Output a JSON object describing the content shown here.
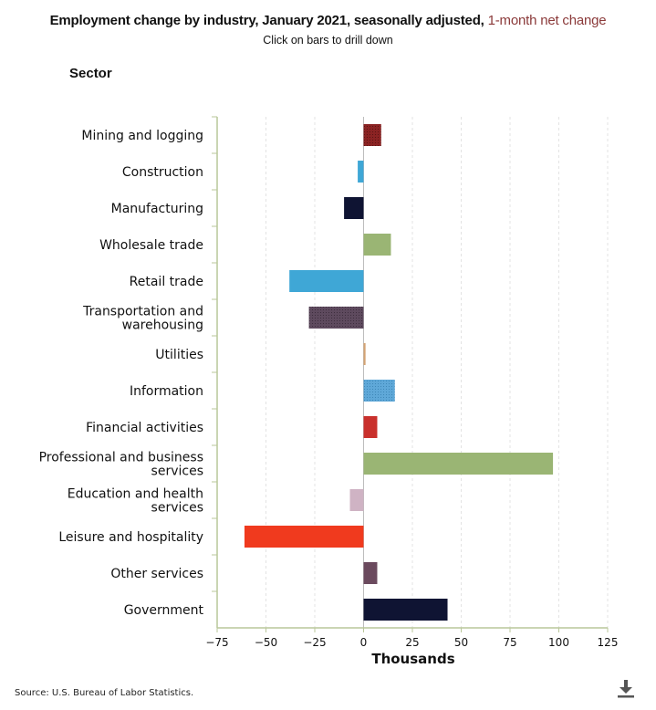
{
  "header": {
    "title": "Employment change by industry, January 2021, seasonally adjusted,",
    "title_highlight": "1-month net change",
    "subtitle": "Click on bars to drill down",
    "sector_label": "Sector"
  },
  "footer": {
    "source": "Source: U.S. Bureau of Labor Statistics."
  },
  "icons": {
    "download": "download-icon"
  },
  "chart_data": {
    "type": "bar",
    "orientation": "horizontal",
    "title": "Employment change by industry, January 2021, seasonally adjusted, 1-month net change",
    "xlabel": "Thousands",
    "ylabel": "Sector",
    "xlim": [
      -75,
      125
    ],
    "xticks": [
      -75,
      -50,
      -25,
      0,
      25,
      50,
      75,
      100,
      125
    ],
    "xtick_labels": [
      "−75",
      "−50",
      "−25",
      "0",
      "25",
      "50",
      "75",
      "100",
      "125"
    ],
    "grid": "vertical dashed",
    "categories": [
      {
        "label": "Mining and logging",
        "lines": [
          "Mining and logging"
        ],
        "value": 9,
        "color": "#8b2323"
      },
      {
        "label": "Construction",
        "lines": [
          "Construction"
        ],
        "value": -3,
        "color": "#3fa7d6"
      },
      {
        "label": "Manufacturing",
        "lines": [
          "Manufacturing"
        ],
        "value": -10,
        "color": "#0f1433"
      },
      {
        "label": "Wholesale trade",
        "lines": [
          "Wholesale trade"
        ],
        "value": 14,
        "color": "#9ab574"
      },
      {
        "label": "Retail trade",
        "lines": [
          "Retail trade"
        ],
        "value": -38,
        "color": "#3fa7d6"
      },
      {
        "label": "Transportation and warehousing",
        "lines": [
          "Transportation and",
          "warehousing"
        ],
        "value": -28,
        "color": "#5e4a5e"
      },
      {
        "label": "Utilities",
        "lines": [
          "Utilities"
        ],
        "value": 1,
        "color": "#d4a373"
      },
      {
        "label": "Information",
        "lines": [
          "Information"
        ],
        "value": 16,
        "color": "#5fa8d8"
      },
      {
        "label": "Financial activities",
        "lines": [
          "Financial activities"
        ],
        "value": 7,
        "color": "#c9302c"
      },
      {
        "label": "Professional and business services",
        "lines": [
          "Professional and business",
          "services"
        ],
        "value": 97,
        "color": "#9ab574"
      },
      {
        "label": "Education and health services",
        "lines": [
          "Education and health",
          "services"
        ],
        "value": -7,
        "color": "#cfb3c4"
      },
      {
        "label": "Leisure and hospitality",
        "lines": [
          "Leisure and hospitality"
        ],
        "value": -61,
        "color": "#f03a1e"
      },
      {
        "label": "Other services",
        "lines": [
          "Other services"
        ],
        "value": 7,
        "color": "#6b4a5e"
      },
      {
        "label": "Government",
        "lines": [
          "Government"
        ],
        "value": 43,
        "color": "#0f1433"
      }
    ]
  }
}
